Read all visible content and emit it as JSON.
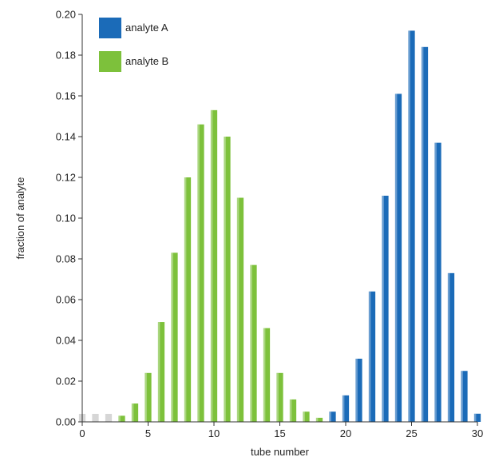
{
  "chart_data": {
    "type": "bar",
    "xlabel": "tube number",
    "ylabel": "fraction of analyte",
    "xlim": [
      0,
      30
    ],
    "ylim": [
      0,
      0.2
    ],
    "xticks": [
      "0",
      "5",
      "10",
      "15",
      "20",
      "25",
      "30"
    ],
    "yticks": [
      "0.00",
      "0.02",
      "0.04",
      "0.06",
      "0.08",
      "0.10",
      "0.12",
      "0.14",
      "0.16",
      "0.18",
      "0.20"
    ],
    "grid": false,
    "legend_position": "top-left",
    "x": [
      0,
      1,
      2,
      3,
      4,
      5,
      6,
      7,
      8,
      9,
      10,
      11,
      12,
      13,
      14,
      15,
      16,
      17,
      18,
      19,
      20,
      21,
      22,
      23,
      24,
      25,
      26,
      27,
      28,
      29,
      30
    ],
    "series": [
      {
        "name": "analyte A",
        "color": "#1b6bb8",
        "values": [
          0,
          0,
          0,
          0,
          0,
          0,
          0,
          0,
          0,
          0,
          0,
          0,
          0,
          0,
          0,
          0,
          0,
          0,
          0,
          0.005,
          0.013,
          0.031,
          0.064,
          0.111,
          0.161,
          0.192,
          0.184,
          0.137,
          0.073,
          0.025,
          0.004
        ]
      },
      {
        "name": "analyte B",
        "color": "#7dc13b",
        "values": [
          0,
          0,
          0,
          0.003,
          0.009,
          0.024,
          0.049,
          0.083,
          0.12,
          0.146,
          0.153,
          0.14,
          0.11,
          0.077,
          0.046,
          0.024,
          0.011,
          0.005,
          0.002,
          0,
          0,
          0,
          0,
          0,
          0,
          0,
          0,
          0,
          0,
          0,
          0
        ]
      }
    ]
  }
}
